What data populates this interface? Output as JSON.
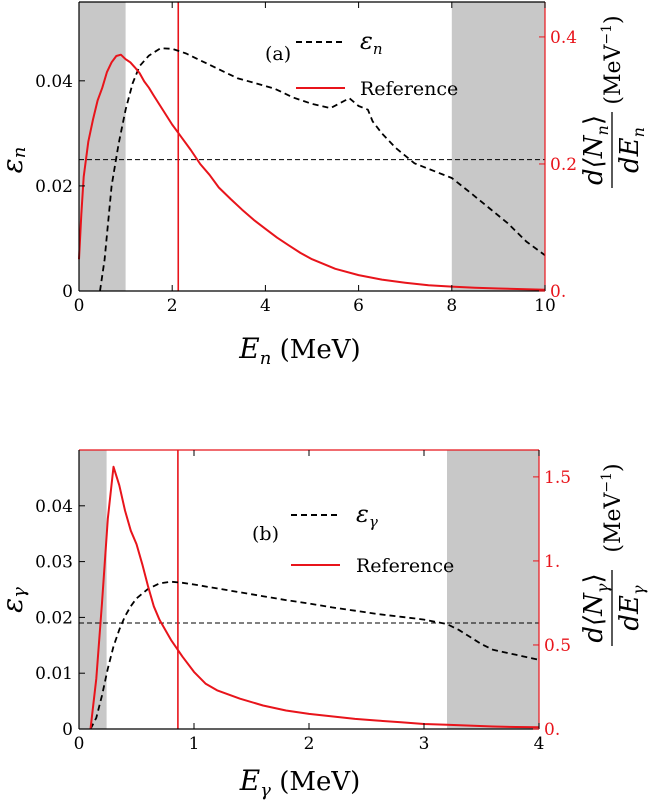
{
  "chart_data": [
    {
      "type": "line",
      "panel_label": "(a)",
      "xlabel": {
        "main": "E",
        "sub": "n",
        "unit": "(MeV)"
      },
      "ylabel_left": {
        "main": "ε",
        "sub": "n"
      },
      "ylabel_right": {
        "num_pre": "d",
        "num_main": "⟨N",
        "num_sub": "n",
        "num_post": "⟩",
        "den_pre": "dE",
        "den_sub": "n",
        "unit_pre": "(MeV",
        "unit_exp": "−1",
        "unit_post": ")"
      },
      "xlim": [
        0,
        10
      ],
      "ylim_left": [
        0,
        0.055
      ],
      "ylim_right": [
        0,
        0.455
      ],
      "x_ticks": [
        0,
        2,
        4,
        6,
        8,
        10
      ],
      "y_ticks_left": [
        0,
        0.02,
        0.04
      ],
      "y_ticks_left_labels": [
        "0",
        "0.02",
        "0.04"
      ],
      "y_ticks_right": [
        0,
        0.2,
        0.4
      ],
      "y_ticks_right_labels": [
        "0.",
        "0.2",
        "0.4"
      ],
      "shaded_regions": [
        [
          0,
          1
        ],
        [
          8,
          10
        ]
      ],
      "vertical_line_x": 2.13,
      "horizontal_line_left_y": 0.025,
      "legend": [
        {
          "label_main": "ε",
          "label_sub": "n",
          "style": "dashed",
          "color": "#000000"
        },
        {
          "label": "Reference",
          "style": "solid",
          "color": "#e8141b"
        }
      ],
      "series": [
        {
          "axis": "left",
          "color": "#000000",
          "style": "dashed",
          "x": [
            0.45,
            0.55,
            0.7,
            0.85,
            1.0,
            1.15,
            1.3,
            1.5,
            1.75,
            2.0,
            2.3,
            2.6,
            3.0,
            3.4,
            3.8,
            4.2,
            4.6,
            5.0,
            5.4,
            5.8,
            6.0,
            6.2,
            6.3,
            6.5,
            6.8,
            7.2,
            7.6,
            8.0,
            8.4,
            8.8,
            9.2,
            9.6,
            10.0
          ],
          "y": [
            0.0,
            0.006,
            0.02,
            0.028,
            0.0345,
            0.0395,
            0.0428,
            0.0448,
            0.0462,
            0.0461,
            0.0452,
            0.0439,
            0.0422,
            0.0405,
            0.0395,
            0.0385,
            0.0368,
            0.0356,
            0.0348,
            0.0367,
            0.0352,
            0.0345,
            0.0323,
            0.03,
            0.0272,
            0.0243,
            0.0229,
            0.0215,
            0.0187,
            0.0158,
            0.0129,
            0.0094,
            0.0068
          ]
        },
        {
          "axis": "right",
          "color": "#e8141b",
          "style": "solid",
          "x": [
            0.0,
            0.05,
            0.1,
            0.2,
            0.3,
            0.4,
            0.5,
            0.6,
            0.7,
            0.8,
            0.9,
            1.0,
            1.1,
            1.2,
            1.3,
            1.4,
            1.5,
            1.6,
            1.8,
            2.0,
            2.2,
            2.4,
            2.6,
            2.8,
            3.0,
            3.25,
            3.5,
            3.75,
            4.0,
            4.25,
            4.5,
            4.75,
            5.0,
            5.5,
            6.0,
            6.5,
            7.0,
            7.5,
            8.0,
            8.5,
            9.0,
            9.5,
            10.0
          ],
          "y": [
            0.05,
            0.12,
            0.18,
            0.235,
            0.27,
            0.3,
            0.32,
            0.345,
            0.36,
            0.37,
            0.372,
            0.365,
            0.36,
            0.352,
            0.343,
            0.33,
            0.32,
            0.308,
            0.285,
            0.262,
            0.242,
            0.222,
            0.2,
            0.183,
            0.163,
            0.145,
            0.128,
            0.112,
            0.098,
            0.084,
            0.072,
            0.06,
            0.05,
            0.035,
            0.025,
            0.018,
            0.013,
            0.009,
            0.007,
            0.005,
            0.004,
            0.003,
            0.002
          ]
        }
      ]
    },
    {
      "type": "line",
      "panel_label": "(b)",
      "xlabel": {
        "main": "E",
        "sub": "γ",
        "unit": "(MeV)"
      },
      "ylabel_left": {
        "main": "ε",
        "sub": "γ"
      },
      "ylabel_right": {
        "num_pre": "d",
        "num_main": "⟨N",
        "num_sub": "γ",
        "num_post": "⟩",
        "den_pre": "dE",
        "den_sub": "γ",
        "unit_pre": "(MeV",
        "unit_exp": "−1",
        "unit_post": ")"
      },
      "xlim": [
        0,
        4
      ],
      "ylim_left": [
        0,
        0.05
      ],
      "ylim_right": [
        0,
        1.66
      ],
      "x_ticks": [
        0,
        1,
        2,
        3,
        4
      ],
      "y_ticks_left": [
        0,
        0.01,
        0.02,
        0.03,
        0.04
      ],
      "y_ticks_left_labels": [
        "0",
        "0.01",
        "0.02",
        "0.03",
        "0.04"
      ],
      "y_ticks_right": [
        0,
        0.5,
        1,
        1.5
      ],
      "y_ticks_right_labels": [
        "0.",
        "0.5",
        "1.",
        "1.5"
      ],
      "shaded_regions": [
        [
          0,
          0.24
        ],
        [
          3.2,
          4.0
        ]
      ],
      "vertical_line_x": 0.86,
      "horizontal_line_left_y": 0.019,
      "legend": [
        {
          "label_main": "ε",
          "label_sub": "γ",
          "style": "dashed",
          "color": "#000000"
        },
        {
          "label": "Reference",
          "style": "solid",
          "color": "#e8141b"
        }
      ],
      "series": [
        {
          "axis": "left",
          "color": "#000000",
          "style": "dashed",
          "x": [
            0.1,
            0.15,
            0.2,
            0.25,
            0.3,
            0.35,
            0.4,
            0.45,
            0.5,
            0.6,
            0.7,
            0.8,
            0.9,
            1.0,
            1.2,
            1.4,
            1.6,
            1.8,
            2.0,
            2.2,
            2.4,
            2.6,
            2.8,
            3.0,
            3.2,
            3.3,
            3.4,
            3.5,
            3.6,
            3.8,
            4.0
          ],
          "y": [
            0.0,
            0.002,
            0.006,
            0.0108,
            0.0148,
            0.0178,
            0.0202,
            0.022,
            0.0234,
            0.0251,
            0.0261,
            0.0264,
            0.0262,
            0.0259,
            0.0252,
            0.0245,
            0.0238,
            0.0231,
            0.0225,
            0.0218,
            0.0212,
            0.0206,
            0.0201,
            0.0196,
            0.0188,
            0.0178,
            0.0165,
            0.0152,
            0.0142,
            0.0133,
            0.0124
          ]
        },
        {
          "axis": "right",
          "color": "#e8141b",
          "style": "solid",
          "x": [
            0.1,
            0.15,
            0.2,
            0.25,
            0.3,
            0.35,
            0.4,
            0.45,
            0.5,
            0.55,
            0.6,
            0.65,
            0.7,
            0.8,
            0.9,
            1.0,
            1.1,
            1.2,
            1.4,
            1.6,
            1.8,
            2.0,
            2.2,
            2.4,
            2.6,
            2.8,
            3.0,
            3.2,
            3.4,
            3.6,
            3.8,
            4.0
          ],
          "y": [
            0.0,
            0.3,
            0.75,
            1.25,
            1.56,
            1.45,
            1.3,
            1.18,
            1.1,
            0.98,
            0.85,
            0.73,
            0.65,
            0.53,
            0.43,
            0.34,
            0.27,
            0.23,
            0.18,
            0.14,
            0.11,
            0.09,
            0.075,
            0.06,
            0.05,
            0.04,
            0.03,
            0.025,
            0.02,
            0.015,
            0.012,
            0.01
          ]
        }
      ]
    }
  ]
}
